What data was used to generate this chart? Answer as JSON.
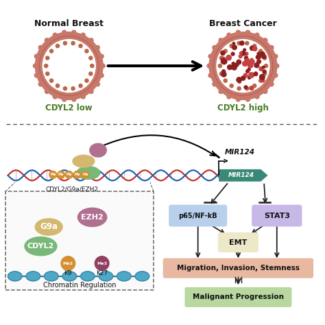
{
  "bg_color": "#ffffff",
  "fig_size": [
    4.74,
    4.74
  ],
  "dpi": 100,
  "top_left_label": "Normal Breast",
  "top_right_label": "Breast Cancer",
  "cdyl2_low": "CDYL2 low",
  "cdyl2_high": "CDYL2 high",
  "breast_outer_color": "#c8786a",
  "breast_ring_color": "#b56050",
  "breast_dot_color": "#b86848",
  "cancer_cell_color": "#8b2020",
  "cancer_dot_color": "#c84040",
  "dna_red": "#c03030",
  "dna_blue": "#2060b0",
  "ezh2_color": "#b07090",
  "g9a_color": "#d4b870",
  "cdyl2_color": "#78b878",
  "me2_color": "#d49030",
  "me3_color": "#904060",
  "mir124_color": "#3a8878",
  "p65_color": "#b8d0ec",
  "stat3_color": "#c8b8e8",
  "emt_color": "#ede8c8",
  "migration_color": "#e8b8a0",
  "malignant_color": "#b8d8a0",
  "arrow_color": "#222222",
  "text_color": "#111111",
  "label_color": "#4a7a20",
  "chromatin_color": "#50a8c8",
  "inset_edge": "#666666"
}
